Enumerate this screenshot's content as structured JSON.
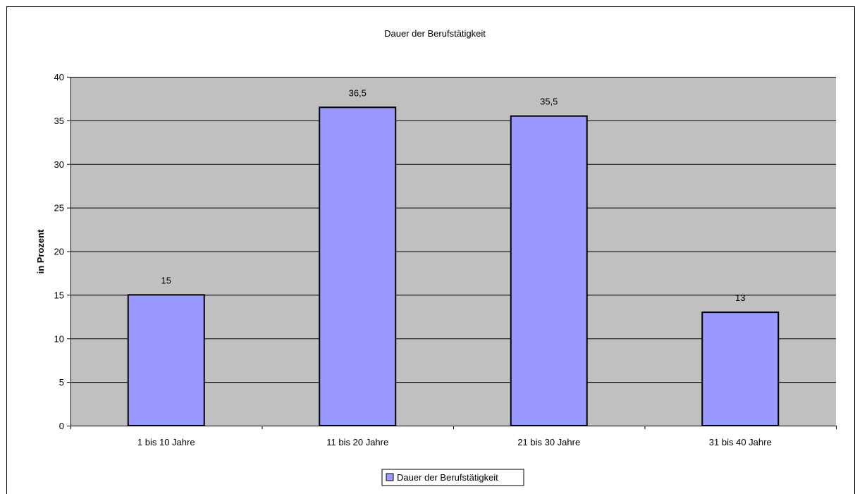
{
  "chart_data": {
    "type": "bar",
    "title": "Dauer der Berufstätigkeit",
    "xlabel": "",
    "ylabel": "in Prozent",
    "categories": [
      "1 bis 10 Jahre",
      "11 bis 20 Jahre",
      "21 bis 30 Jahre",
      "31 bis 40 Jahre"
    ],
    "series": [
      {
        "name": "Dauer der Berufstätigkeit",
        "values": [
          15,
          36.5,
          35.5,
          13
        ],
        "value_labels": [
          "15",
          "36,5",
          "35,5",
          "13"
        ],
        "color": "#9999ff"
      }
    ],
    "ylim": [
      0,
      40
    ],
    "yticks": [
      0,
      5,
      10,
      15,
      20,
      25,
      30,
      35,
      40
    ],
    "grid": true,
    "legend_position": "bottom",
    "plot_background": "#c0c0c0"
  }
}
